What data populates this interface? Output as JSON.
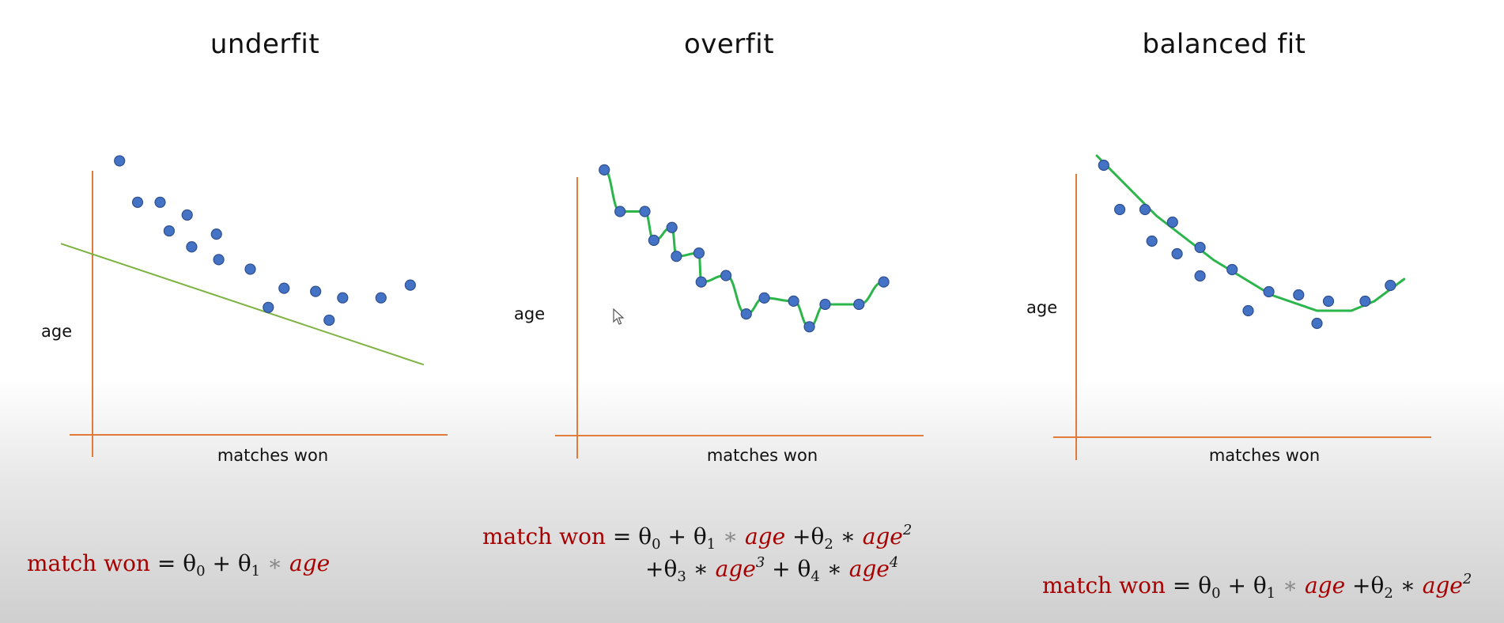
{
  "colors": {
    "axis": "#e07b39",
    "point_fill": "#4472c4",
    "point_stroke": "#2f4f8f",
    "linear_fit": "#7cb342",
    "curve_fit": "#2bb54a",
    "formula_red": "#a80000"
  },
  "panels": [
    {
      "title": "underfit",
      "ylabel": "age",
      "xlabel": "matches won",
      "formula": {
        "lhs": "match won",
        "eq": "=",
        "line1": [
          {
            "t": "θ",
            "sub": "0"
          },
          {
            "t": " + "
          },
          {
            "t": "θ",
            "sub": "1"
          },
          {
            "t": " ∗ ",
            "cls": "grey"
          },
          {
            "t": "age",
            "cls": "red ital"
          }
        ]
      }
    },
    {
      "title": "overfit",
      "ylabel": "age",
      "xlabel": "matches won",
      "formula": {
        "lhs": "match won",
        "eq": "=",
        "line1": [
          {
            "t": "θ",
            "sub": "0"
          },
          {
            "t": " + "
          },
          {
            "t": "θ",
            "sub": "1"
          },
          {
            "t": " ∗ ",
            "cls": "grey"
          },
          {
            "t": "age",
            "cls": "red ital"
          },
          {
            "t": "    +"
          },
          {
            "t": "θ",
            "sub": "2"
          },
          {
            "t": " ∗ "
          },
          {
            "t": "age",
            "cls": "red ital",
            "sup": "2"
          }
        ],
        "line2": [
          {
            "t": "+"
          },
          {
            "t": "θ",
            "sub": "3"
          },
          {
            "t": " ∗ "
          },
          {
            "t": "age",
            "cls": "red ital",
            "sup": "3"
          },
          {
            "t": "  + "
          },
          {
            "t": "θ",
            "sub": "4"
          },
          {
            "t": " ∗ "
          },
          {
            "t": "age",
            "cls": "red ital",
            "sup": "4"
          }
        ]
      }
    },
    {
      "title": "balanced fit",
      "ylabel": "age",
      "xlabel": "matches won",
      "formula": {
        "lhs": "match won",
        "eq": "=",
        "line1": [
          {
            "t": "θ",
            "sub": "0"
          },
          {
            "t": " + "
          },
          {
            "t": "θ",
            "sub": "1"
          },
          {
            "t": " ∗ ",
            "cls": "grey"
          },
          {
            "t": "age",
            "cls": "red ital"
          },
          {
            "t": "    +"
          },
          {
            "t": "θ",
            "sub": "2"
          },
          {
            "t": " ∗ "
          },
          {
            "t": "age",
            "cls": "red ital",
            "sup": "2"
          }
        ]
      }
    }
  ],
  "chart_data": [
    {
      "type": "scatter",
      "title": "underfit",
      "xlabel": "matches won",
      "ylabel": "age",
      "fit": "linear",
      "points": [
        [
          1.2,
          8.6
        ],
        [
          2.0,
          7.3
        ],
        [
          3.0,
          7.3
        ],
        [
          3.4,
          6.4
        ],
        [
          4.2,
          6.9
        ],
        [
          4.4,
          5.9
        ],
        [
          5.5,
          6.3
        ],
        [
          5.6,
          5.5
        ],
        [
          7.0,
          5.2
        ],
        [
          7.8,
          4.0
        ],
        [
          8.5,
          4.6
        ],
        [
          9.9,
          4.5
        ],
        [
          10.5,
          3.6
        ],
        [
          11.1,
          4.3
        ],
        [
          12.8,
          4.3
        ],
        [
          14.1,
          4.7
        ]
      ],
      "fit_line": [
        [
          -1.4,
          6.0
        ],
        [
          14.7,
          2.2
        ]
      ]
    },
    {
      "type": "scatter",
      "title": "overfit",
      "xlabel": "matches won",
      "ylabel": "age",
      "fit": "polynomial (interpolating)",
      "points": [
        [
          1.2,
          8.3
        ],
        [
          1.9,
          7.0
        ],
        [
          3.0,
          7.0
        ],
        [
          3.4,
          6.1
        ],
        [
          4.2,
          6.5
        ],
        [
          4.4,
          5.6
        ],
        [
          5.4,
          5.7
        ],
        [
          5.5,
          4.8
        ],
        [
          6.6,
          5.0
        ],
        [
          7.5,
          3.8
        ],
        [
          8.3,
          4.3
        ],
        [
          9.6,
          4.2
        ],
        [
          10.3,
          3.4
        ],
        [
          11.0,
          4.1
        ],
        [
          12.5,
          4.1
        ],
        [
          13.6,
          4.8
        ]
      ],
      "fit_line": "interpolates all points"
    },
    {
      "type": "scatter",
      "title": "balanced fit",
      "xlabel": "matches won",
      "ylabel": "age",
      "fit": "quadratic",
      "points": [
        [
          1.2,
          8.6
        ],
        [
          1.9,
          7.2
        ],
        [
          3.0,
          7.2
        ],
        [
          3.3,
          6.2
        ],
        [
          4.2,
          6.8
        ],
        [
          4.4,
          5.8
        ],
        [
          5.4,
          6.0
        ],
        [
          5.4,
          5.1
        ],
        [
          6.8,
          5.3
        ],
        [
          7.5,
          4.0
        ],
        [
          8.4,
          4.6
        ],
        [
          9.7,
          4.5
        ],
        [
          10.5,
          3.6
        ],
        [
          11.0,
          4.3
        ],
        [
          12.6,
          4.3
        ],
        [
          13.7,
          4.8
        ]
      ],
      "fit_line": [
        [
          0.9,
          8.9
        ],
        [
          3.5,
          7.0
        ],
        [
          6.0,
          5.6
        ],
        [
          8.5,
          4.5
        ],
        [
          10.5,
          4.0
        ],
        [
          12.0,
          4.0
        ],
        [
          13.0,
          4.3
        ],
        [
          14.3,
          5.0
        ]
      ]
    }
  ]
}
